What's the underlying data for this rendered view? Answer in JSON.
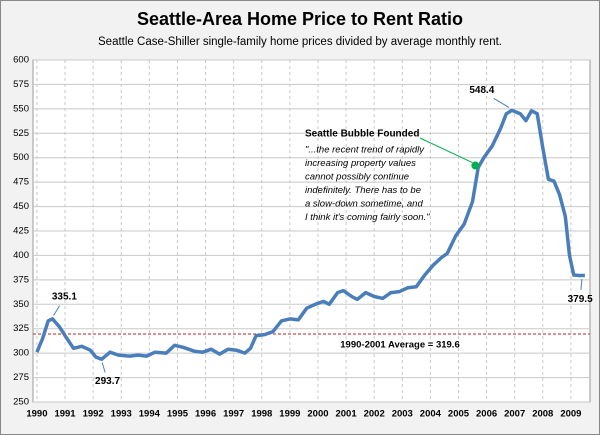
{
  "chart_data": {
    "type": "line",
    "title": "Seattle-Area Home Price to Rent Ratio",
    "subtitle": "Seattle Case-Shiller single-family home prices divided by average monthly rent.",
    "series": [
      {
        "name": "Price to Rent Ratio",
        "color": "#4a7ebb",
        "x": [
          1990.0,
          1990.2,
          1990.4,
          1990.55,
          1990.8,
          1991.0,
          1991.3,
          1991.6,
          1991.9,
          1992.1,
          1992.3,
          1992.6,
          1992.9,
          1993.3,
          1993.6,
          1993.9,
          1994.2,
          1994.6,
          1994.9,
          1995.2,
          1995.6,
          1995.9,
          1996.2,
          1996.5,
          1996.8,
          1997.1,
          1997.4,
          1997.6,
          1997.8,
          1998.1,
          1998.4,
          1998.7,
          1999.0,
          1999.3,
          1999.6,
          1999.9,
          2000.2,
          2000.4,
          2000.7,
          2000.9,
          2001.2,
          2001.4,
          2001.7,
          2002.0,
          2002.3,
          2002.6,
          2002.9,
          2003.2,
          2003.5,
          2003.8,
          2004.1,
          2004.4,
          2004.6,
          2004.9,
          2005.2,
          2005.5,
          2005.7,
          2005.9,
          2006.2,
          2006.5,
          2006.7,
          2006.9,
          2007.2,
          2007.4,
          2007.6,
          2007.8,
          2008.0,
          2008.2,
          2008.4,
          2008.6,
          2008.8,
          2008.95,
          2009.1,
          2009.3,
          2009.5
        ],
        "values": [
          301,
          315,
          333,
          335.1,
          327,
          318,
          305,
          307,
          303,
          296,
          293.7,
          301,
          298,
          297,
          298,
          297,
          301,
          300,
          308,
          306,
          302,
          301,
          304,
          299,
          304,
          303,
          300,
          305,
          318,
          319,
          322,
          333,
          335,
          334,
          346,
          350,
          353,
          350,
          362,
          364,
          358,
          355,
          362,
          358,
          356,
          362,
          363,
          367,
          368,
          380,
          390,
          398,
          402,
          420,
          432,
          455,
          490,
          500,
          512,
          530,
          545,
          548.4,
          545,
          538,
          548,
          545,
          510,
          478,
          476,
          462,
          440,
          400,
          380,
          379.5,
          379.5
        ]
      }
    ],
    "average": {
      "value": 319.6,
      "color": "#c0504d",
      "label": "1990-2001 Average = 319.6"
    },
    "highlight": {
      "x": 2005.6,
      "value": 492,
      "color": "#00b050",
      "label": "Seattle Bubble Founded",
      "quote": [
        "\"...the recent trend of rapidly",
        "increasing property values",
        "cannot possibly continue",
        "indefinitely.  There has to be",
        "a slow-down sometime, and",
        "I think it's coming fairly soon.\""
      ]
    },
    "point_labels": [
      {
        "x": 1990.55,
        "value": 335.1,
        "label": "335.1"
      },
      {
        "x": 1992.3,
        "value": 293.7,
        "label": "293.7"
      },
      {
        "x": 2006.9,
        "value": 548.4,
        "label": "548.4"
      },
      {
        "x": 2009.4,
        "value": 379.5,
        "label": "379.5"
      }
    ],
    "xlim": [
      1989.86,
      2009.68
    ],
    "xticks": [
      1990,
      1991,
      1992,
      1993,
      1994,
      1995,
      1996,
      1997,
      1998,
      1999,
      2000,
      2001,
      2002,
      2003,
      2004,
      2005,
      2006,
      2007,
      2008,
      2009
    ],
    "ylim": [
      250,
      600
    ],
    "yticks": [
      250,
      275,
      300,
      325,
      350,
      375,
      400,
      425,
      450,
      475,
      500,
      525,
      550,
      575,
      600
    ],
    "grid": true
  }
}
